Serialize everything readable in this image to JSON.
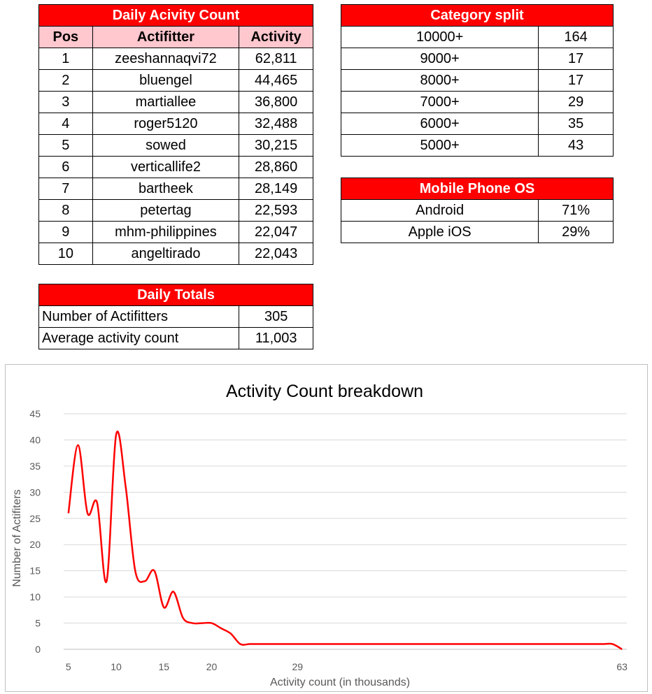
{
  "daily": {
    "title": "Daily Acivity Count",
    "headers": [
      "Pos",
      "Actifitter",
      "Activity"
    ],
    "rows": [
      [
        "1",
        "zeeshannaqvi72",
        "62,811"
      ],
      [
        "2",
        "bluengel",
        "44,465"
      ],
      [
        "3",
        "martiallee",
        "36,800"
      ],
      [
        "4",
        "roger5120",
        "32,488"
      ],
      [
        "5",
        "sowed",
        "30,215"
      ],
      [
        "6",
        "verticallife2",
        "28,860"
      ],
      [
        "7",
        "bartheek",
        "28,149"
      ],
      [
        "8",
        "petertag",
        "22,593"
      ],
      [
        "9",
        "mhm-philippines",
        "22,047"
      ],
      [
        "10",
        "angeltirado",
        "22,043"
      ]
    ]
  },
  "category": {
    "title": "Category split",
    "rows": [
      [
        "10000+",
        "164"
      ],
      [
        "9000+",
        "17"
      ],
      [
        "8000+",
        "17"
      ],
      [
        "7000+",
        "29"
      ],
      [
        "6000+",
        "35"
      ],
      [
        "5000+",
        "43"
      ]
    ]
  },
  "mobile": {
    "title": "Mobile Phone OS",
    "rows": [
      [
        "Android",
        "71%"
      ],
      [
        "Apple iOS",
        "29%"
      ]
    ]
  },
  "totals": {
    "title": "Daily Totals",
    "rows": [
      [
        "Number of Actifitters",
        "305"
      ],
      [
        "Average activity count",
        "11,003"
      ]
    ]
  },
  "chart_data": {
    "type": "line",
    "title": "Activity Count breakdown",
    "xlabel": "Activity count (in thousands)",
    "ylabel": "Number of Actifiters",
    "x": [
      "5",
      "6",
      "7",
      "8",
      "9",
      "10",
      "11",
      "12",
      "13",
      "14",
      "15",
      "16",
      "17",
      "18",
      "19",
      "20",
      "21",
      "22",
      "23",
      "24",
      "25",
      "26",
      "27",
      "28",
      "29",
      "30",
      "31",
      "32",
      "33",
      "34",
      "35",
      "36",
      "37",
      "38",
      "39",
      "40",
      "41",
      "42",
      "43",
      "44",
      "45",
      "46",
      "47",
      "48",
      "49",
      "50",
      "51",
      "52",
      "53",
      "54",
      "55",
      "56",
      "57",
      "58",
      "59",
      "60",
      "61",
      "62",
      "63"
    ],
    "x_tick_labels": [
      "5",
      "10",
      "15",
      "20",
      "29",
      "63"
    ],
    "series": [
      {
        "color": "#ff0000",
        "values": [
          26,
          39,
          26,
          28,
          13,
          41,
          31,
          15,
          13,
          15,
          8,
          11,
          6,
          5,
          5,
          5,
          4,
          3,
          1,
          1,
          1,
          1,
          1,
          1,
          1,
          1,
          1,
          1,
          1,
          1,
          1,
          1,
          1,
          1,
          1,
          1,
          1,
          1,
          1,
          1,
          1,
          1,
          1,
          1,
          1,
          1,
          1,
          1,
          1,
          1,
          1,
          1,
          1,
          1,
          1,
          1,
          1,
          1,
          0
        ]
      }
    ],
    "ylim": [
      0,
      45
    ],
    "yticks": [
      0,
      5,
      10,
      15,
      20,
      25,
      30,
      35,
      40,
      45
    ],
    "grid": true,
    "smooth": true
  }
}
